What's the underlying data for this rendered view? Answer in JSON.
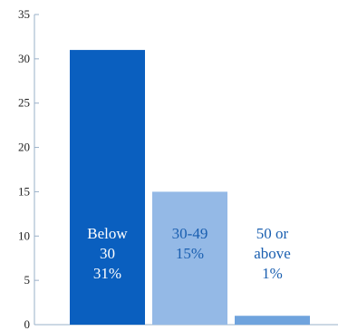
{
  "chart_data": {
    "type": "bar",
    "categories": [
      "Below 30",
      "30-49",
      "50 or above"
    ],
    "values": [
      31,
      15,
      1
    ],
    "percent_labels": [
      "31%",
      "15%",
      "1%"
    ],
    "bar_label_lines": [
      [
        "Below",
        "30",
        "31%"
      ],
      [
        "30-49",
        "15%"
      ],
      [
        "50 or",
        "above",
        "1%"
      ]
    ],
    "colors": [
      "#0a5fbf",
      "#94b9e6",
      "#6fa3dd"
    ],
    "label_colors": [
      "#ffffff",
      "#1a5fb0",
      "#1a5fb0"
    ],
    "ylim": [
      0,
      35
    ],
    "yticks": [
      0,
      5,
      10,
      15,
      20,
      25,
      30,
      35
    ],
    "title": "",
    "xlabel": "",
    "ylabel": "",
    "grid": false,
    "legend": "none"
  }
}
